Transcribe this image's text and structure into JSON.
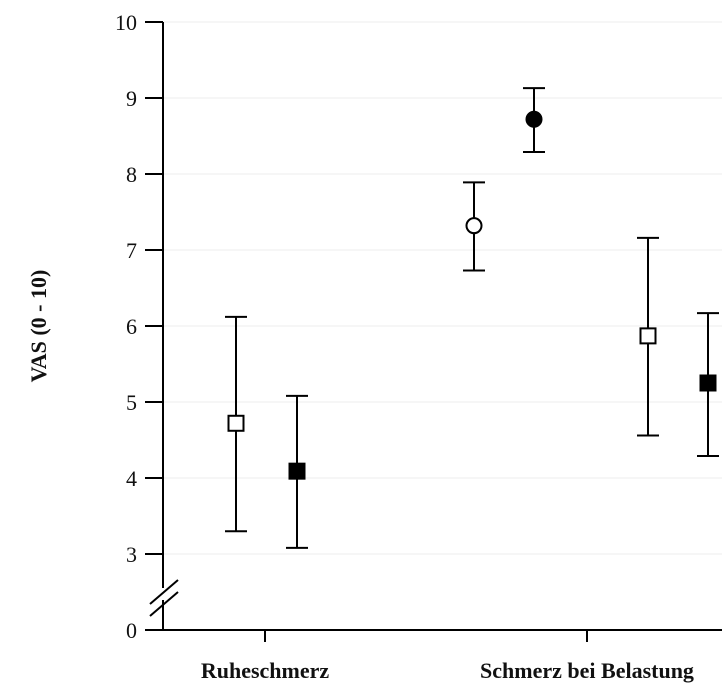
{
  "chart_data": {
    "type": "scatter",
    "ylabel": "VAS (0 - 10)",
    "ylim": [
      0,
      10
    ],
    "axis_break": [
      0,
      3
    ],
    "y_ticks": [
      "0",
      "3",
      "4",
      "5",
      "6",
      "7",
      "8",
      "9",
      "10"
    ],
    "grid": true,
    "categories": [
      "Ruheschmerz",
      "Schmerz bei Belastung"
    ],
    "colors": {
      "open_fill": "#ffffff",
      "filled_fill": "#000000",
      "stroke": "#000000",
      "grid": "#ececec"
    },
    "points": [
      {
        "category": "Ruheschmerz",
        "marker": "square",
        "filled": false,
        "value": 4.72,
        "err_low": 3.3,
        "err_high": 6.12
      },
      {
        "category": "Ruheschmerz",
        "marker": "square",
        "filled": true,
        "value": 4.09,
        "err_low": 3.08,
        "err_high": 5.08
      },
      {
        "category": "Schmerz bei Belastung",
        "marker": "circle",
        "filled": false,
        "value": 7.32,
        "err_low": 6.73,
        "err_high": 7.89
      },
      {
        "category": "Schmerz bei Belastung",
        "marker": "circle",
        "filled": true,
        "value": 8.72,
        "err_low": 8.29,
        "err_high": 9.13
      },
      {
        "category": "Schmerz bei Belastung",
        "marker": "square",
        "filled": false,
        "value": 5.87,
        "err_low": 4.56,
        "err_high": 7.16
      },
      {
        "category": "Schmerz bei Belastung",
        "marker": "square",
        "filled": true,
        "value": 5.25,
        "err_low": 4.29,
        "err_high": 6.17
      }
    ]
  }
}
